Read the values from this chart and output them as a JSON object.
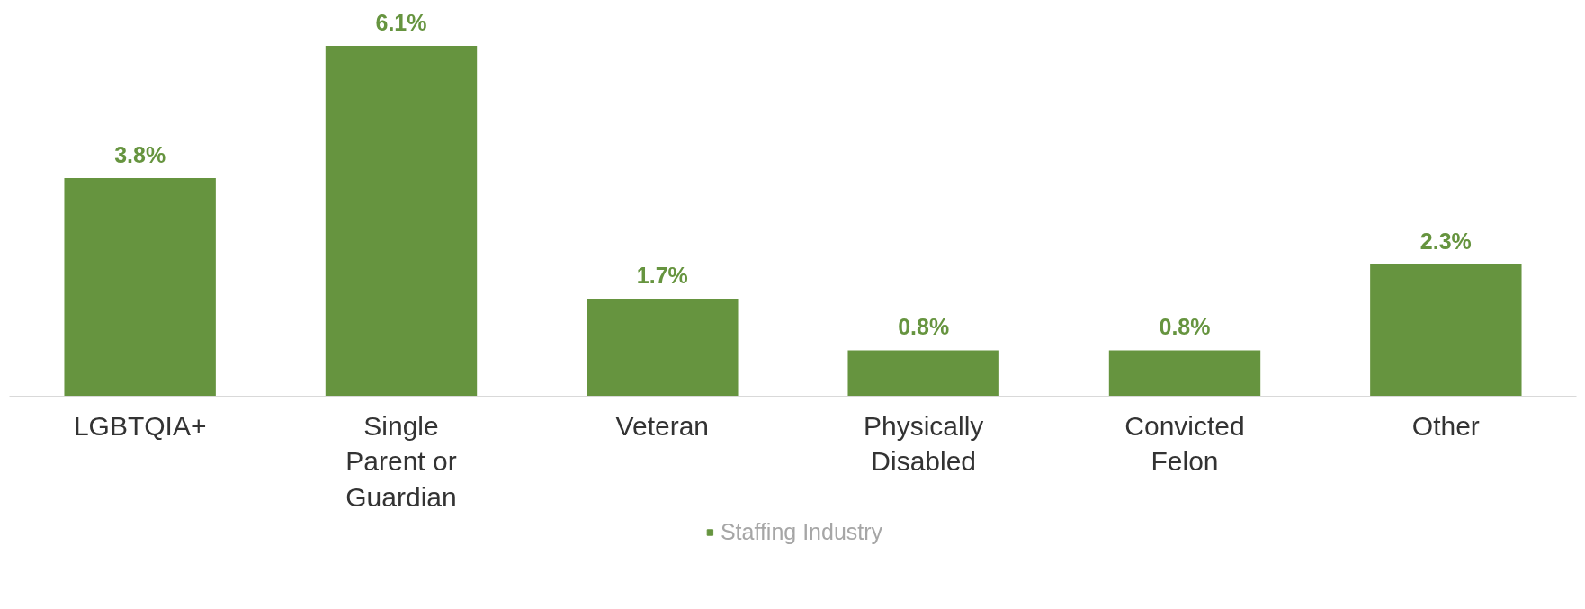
{
  "chart_data": {
    "type": "bar",
    "categories": [
      "LGBTQIA+",
      "Single Parent or Guardian",
      "Veteran",
      "Physically Disabled",
      "Convicted Felon",
      "Other"
    ],
    "series": [
      {
        "name": "Staffing Industry",
        "color": "#66943f",
        "values": [
          3.8,
          6.1,
          1.7,
          0.8,
          0.8,
          2.3
        ],
        "value_labels": [
          "3.8%",
          "6.1%",
          "1.7%",
          "0.8%",
          "0.8%",
          "2.3%"
        ]
      }
    ],
    "legend": "bottom",
    "grid": false
  }
}
